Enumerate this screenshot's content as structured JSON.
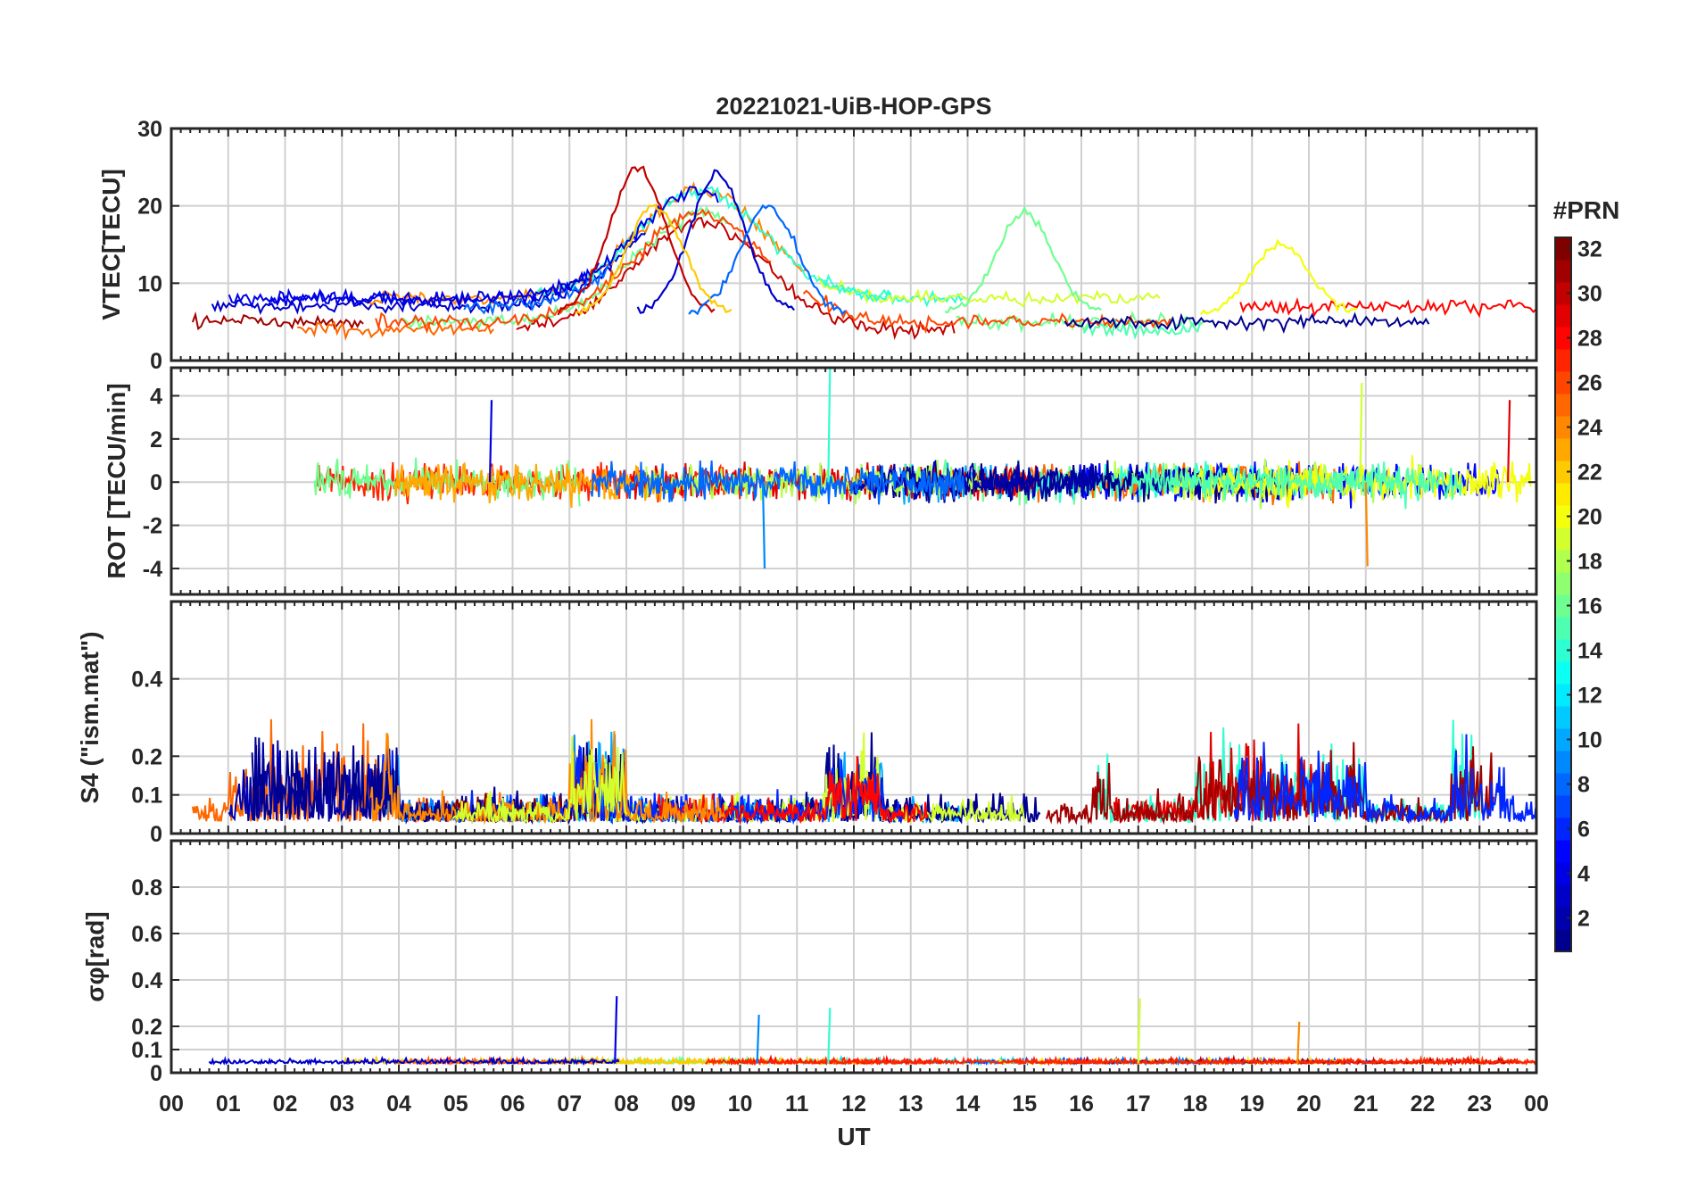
{
  "chart_data": {
    "type": "line",
    "title": "20221021-UiB-HOP-GPS",
    "xlabel": "UT",
    "x_ticks": [
      "00",
      "01",
      "02",
      "03",
      "04",
      "05",
      "06",
      "07",
      "08",
      "09",
      "10",
      "11",
      "12",
      "13",
      "14",
      "15",
      "16",
      "17",
      "18",
      "19",
      "20",
      "21",
      "22",
      "23",
      "00"
    ],
    "xlim_hours": [
      0,
      24
    ],
    "colorbar": {
      "title": "#PRN",
      "range": [
        1,
        32
      ],
      "ticks": [
        "2",
        "4",
        "6",
        "8",
        "10",
        "12",
        "14",
        "16",
        "18",
        "20",
        "22",
        "24",
        "26",
        "28",
        "30",
        "32"
      ],
      "colormap": "jet",
      "colors": [
        "#00008f",
        "#0000ff",
        "#0080ff",
        "#00ffff",
        "#80ff80",
        "#ffff00",
        "#ff8000",
        "#ff0000",
        "#800000"
      ]
    },
    "panels": [
      {
        "name": "vtec",
        "ylabel": "VTEC[TECU]",
        "ylim": [
          0,
          30
        ],
        "yticks": [
          0,
          10,
          20,
          30
        ],
        "ytick_labels": [
          "0",
          "10",
          "20",
          "30"
        ],
        "baseline": 6,
        "series": [
          {
            "prn": 3,
            "description": "peak ~24 TECU near 09.6 UT",
            "peak_time": 9.6,
            "peak_value": 24
          },
          {
            "prn": 30,
            "description": "starts ~24.5 TECU at 08.2 UT, declining",
            "peak_time": 8.2,
            "peak_value": 24.8
          },
          {
            "prn": 8,
            "description": "plateau ~20 TECU 10-11 UT",
            "peak_time": 10.5,
            "peak_value": 20
          },
          {
            "prn": 22,
            "description": "peak ~20 TECU near 08.5 UT",
            "peak_time": 8.5,
            "peak_value": 20
          },
          {
            "prn": 16,
            "description": "peak ~19 TECU near 15.0 UT",
            "peak_time": 15.0,
            "peak_value": 19
          },
          {
            "prn": 20,
            "description": "peak ~15 TECU near 19.5 UT",
            "peak_time": 19.5,
            "peak_value": 15
          }
        ]
      },
      {
        "name": "rot",
        "ylabel": "ROT [TECU/min]",
        "ylim": [
          -5.2,
          5.3
        ],
        "yticks": [
          -4,
          -2,
          0,
          2,
          4
        ],
        "ytick_labels": [
          "-4",
          "-2",
          "0",
          "2",
          "4"
        ],
        "spikes": [
          {
            "time": 5.6,
            "value": 3.8
          },
          {
            "time": 10.4,
            "value": -4.0
          },
          {
            "time": 11.55,
            "value": 5.3
          },
          {
            "time": 20.9,
            "value": 4.6
          },
          {
            "time": 21.0,
            "value": -3.9
          },
          {
            "time": 23.5,
            "value": 3.8
          }
        ]
      },
      {
        "name": "s4",
        "ylabel": "S4 (\"ism.mat\")",
        "ylim": [
          0,
          0.6
        ],
        "yticks": [
          0,
          0.1,
          0.2,
          0.4
        ],
        "ytick_labels": [
          "0",
          "0.1",
          "0.2",
          "0.4"
        ],
        "active_intervals_hours": [
          [
            1,
            4
          ],
          [
            7,
            8
          ],
          [
            11.5,
            12.5
          ],
          [
            16.2,
            16.5
          ],
          [
            18,
            21
          ],
          [
            22.5,
            23.5
          ]
        ]
      },
      {
        "name": "sigma_phi",
        "ylabel": "σφ[rad]",
        "ylim": [
          0,
          1.0
        ],
        "yticks": [
          0,
          0.1,
          0.2,
          0.4,
          0.6,
          0.8
        ],
        "ytick_labels": [
          "0",
          "0.1",
          "0.2",
          "0.4",
          "0.6",
          "0.8"
        ],
        "spikes": [
          {
            "time": 7.8,
            "value": 0.33
          },
          {
            "time": 10.3,
            "value": 0.25
          },
          {
            "time": 11.55,
            "value": 0.28
          },
          {
            "time": 17.0,
            "value": 0.32
          },
          {
            "time": 19.8,
            "value": 0.22
          }
        ]
      }
    ]
  }
}
